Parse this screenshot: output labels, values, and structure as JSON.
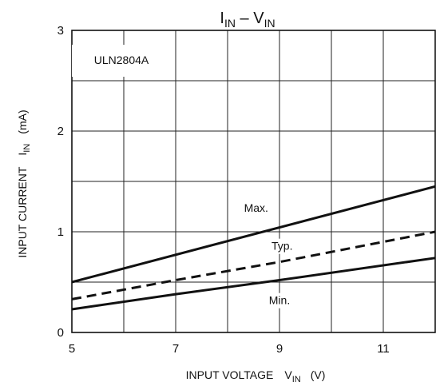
{
  "chart_data": {
    "type": "line",
    "title": {
      "main1": "I",
      "sub1": "IN",
      "sep": " – ",
      "main2": "V",
      "sub2": "IN"
    },
    "annotation": "ULN2804A",
    "xlabel": {
      "text": "INPUT VOLTAGE",
      "symbol": "V",
      "sub": "IN",
      "unit": "(V)"
    },
    "ylabel": {
      "text": "INPUT CURRENT",
      "symbol": "I",
      "sub": "IN",
      "unit": "(mA)"
    },
    "xlim": [
      5,
      12
    ],
    "ylim": [
      0,
      3
    ],
    "xticks": [
      5,
      7,
      9,
      11
    ],
    "yticks": [
      0,
      1,
      2,
      3
    ],
    "x_grid": [
      5,
      6,
      7,
      8,
      9,
      10,
      11,
      12
    ],
    "y_grid": [
      0,
      0.5,
      1,
      1.5,
      2,
      2.5,
      3
    ],
    "grid": true,
    "series": [
      {
        "name": "Max.",
        "x": [
          5,
          12
        ],
        "y": [
          0.5,
          1.45
        ],
        "style": "solid",
        "label_at": {
          "x": 8.55,
          "y": 1.2
        }
      },
      {
        "name": "Typ.",
        "x": [
          5,
          7,
          9,
          12
        ],
        "y": [
          0.33,
          0.52,
          0.7,
          1.0
        ],
        "style": "dashed",
        "label_at": {
          "x": 9.05,
          "y": 0.82
        }
      },
      {
        "name": "Min.",
        "x": [
          5,
          7,
          9,
          12
        ],
        "y": [
          0.23,
          0.38,
          0.52,
          0.74
        ],
        "style": "solid",
        "label_at": {
          "x": 9.0,
          "y": 0.28
        }
      }
    ]
  }
}
